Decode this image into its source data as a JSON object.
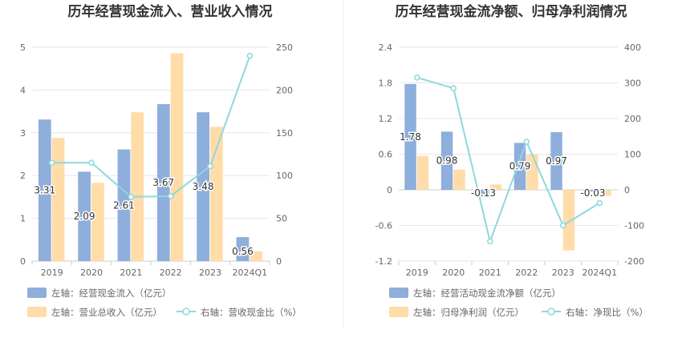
{
  "chart_data": [
    {
      "type": "bar",
      "title": "历年经营现金流入、营业收入情况",
      "categories": [
        "2019",
        "2020",
        "2021",
        "2022",
        "2023",
        "2024Q1"
      ],
      "y_left": {
        "min": 0,
        "max": 5,
        "ticks": [
          "0",
          "1",
          "2",
          "3",
          "4",
          "5"
        ]
      },
      "y_right": {
        "min": 0,
        "max": 250,
        "ticks": [
          "0",
          "50",
          "100",
          "150",
          "200",
          "250"
        ]
      },
      "series": [
        {
          "name": "左轴：经营现金流入（亿元）",
          "kind": "bar",
          "axis": "left",
          "color": "#8eaedb",
          "values": [
            3.31,
            2.09,
            2.61,
            3.67,
            3.48,
            0.56
          ],
          "labels": [
            "3.31",
            "2.09",
            "2.61",
            "3.67",
            "3.48",
            "0.56"
          ]
        },
        {
          "name": "左轴：营业总收入（亿元）",
          "kind": "bar",
          "axis": "left",
          "color": "#ffdca8",
          "values": [
            2.88,
            1.83,
            3.48,
            4.86,
            3.14,
            0.23
          ]
        },
        {
          "name": "右轴：营收现金比（%）",
          "kind": "line",
          "axis": "right",
          "color": "#8fd8dc",
          "values": [
            115,
            115,
            75,
            76,
            111,
            240
          ]
        }
      ]
    },
    {
      "type": "bar",
      "title": "历年经营现金流净额、归母净利润情况",
      "categories": [
        "2019",
        "2020",
        "2021",
        "2022",
        "2023",
        "2024Q1"
      ],
      "y_left": {
        "min": -1.2,
        "max": 2.4,
        "ticks": [
          "-1.2",
          "-0.6",
          "0",
          "0.6",
          "1.2",
          "1.8",
          "2.4"
        ]
      },
      "y_right": {
        "min": -200,
        "max": 400,
        "ticks": [
          "-200",
          "-100",
          "0",
          "100",
          "200",
          "300",
          "400"
        ]
      },
      "series": [
        {
          "name": "左轴：经营活动现金流净额（亿元）",
          "kind": "bar",
          "axis": "left",
          "color": "#8eaedb",
          "values": [
            1.78,
            0.98,
            -0.13,
            0.79,
            0.97,
            -0.03
          ],
          "labels": [
            "1.78",
            "0.98",
            "-0.13",
            "0.79",
            "0.97",
            "-0.03"
          ]
        },
        {
          "name": "左轴：归母净利润（亿元）",
          "kind": "bar",
          "axis": "left",
          "color": "#ffdca8",
          "values": [
            0.57,
            0.34,
            0.09,
            0.6,
            -1.02,
            -0.1
          ]
        },
        {
          "name": "右轴：净现比（%）",
          "kind": "line",
          "axis": "right",
          "color": "#8fd8dc",
          "values": [
            315,
            285,
            -145,
            135,
            -100,
            -37
          ]
        }
      ]
    }
  ]
}
